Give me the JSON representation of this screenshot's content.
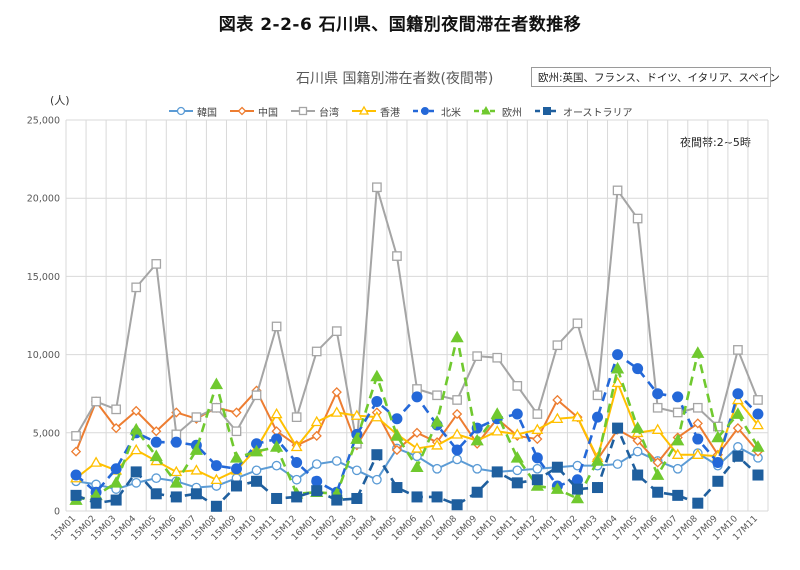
{
  "figure_title": "図表 2-2-6 石川県、国籍別夜間滞在者数推移",
  "chart_title": "石川県 国籍別滞在者数(夜間帯)",
  "note_box": "欧州:英国、フランス、ドイツ、イタリア、スペイン",
  "unit_label": "(人)",
  "time_note": "夜間帯:2~5時",
  "colors": {
    "韓国": "#5b9bd5",
    "中国": "#ed7d31",
    "台湾": "#a5a5a5",
    "香港": "#ffc000",
    "北米": "#2468d8",
    "欧州": "#70c92f",
    "オーストラリア": "#1f5f9e",
    "grid": "#d9d9d9",
    "axis_text": "#595959"
  },
  "chart_data": {
    "type": "line",
    "title": "石川県 国籍別滞在者数(夜間帯)",
    "ylabel": "(人)",
    "ylim": [
      0,
      25000
    ],
    "yticks": [
      "0",
      "5,000",
      "10,000",
      "15,000",
      "20,000",
      "25,000"
    ],
    "grid": true,
    "legend_placement": "top",
    "categories": [
      "15M01",
      "15M02",
      "15M03",
      "15M04",
      "15M05",
      "15M06",
      "15M07",
      "15M08",
      "15M09",
      "15M10",
      "15M11",
      "15M12",
      "16M01",
      "16M02",
      "16M03",
      "16M04",
      "16M05",
      "16M06",
      "16M07",
      "16M08",
      "16M09",
      "16M10",
      "16M11",
      "16M12",
      "17M01",
      "17M02",
      "17M03",
      "17M04",
      "17M05",
      "17M06",
      "17M07",
      "17M08",
      "17M09",
      "17M10",
      "17M11"
    ],
    "series": [
      {
        "name": "韓国",
        "marker": "circle-open",
        "dash": false,
        "values": [
          1900,
          1700,
          1400,
          1800,
          2100,
          1900,
          1500,
          1600,
          2100,
          2600,
          2900,
          2000,
          3000,
          3200,
          2600,
          2000,
          4000,
          3500,
          2700,
          3300,
          2700,
          2500,
          2600,
          2700,
          2800,
          2900,
          2900,
          3000,
          3800,
          3200,
          2700,
          3700,
          2900,
          4100,
          3400
        ]
      },
      {
        "name": "中国",
        "marker": "diamond-open",
        "dash": false,
        "values": [
          3800,
          7000,
          5300,
          6400,
          5100,
          6300,
          5900,
          6600,
          6300,
          7700,
          5100,
          4200,
          4800,
          7600,
          4200,
          6300,
          3900,
          5000,
          4400,
          6200,
          4300,
          5900,
          4800,
          4600,
          7100,
          6000,
          3300,
          5200,
          4500,
          3100,
          4700,
          5600,
          3600,
          5300,
          3800
        ]
      },
      {
        "name": "台湾",
        "marker": "square-open",
        "dash": false,
        "values": [
          4800,
          7000,
          6500,
          14300,
          15800,
          4900,
          6000,
          6600,
          5100,
          7400,
          11800,
          6000,
          10200,
          11500,
          4300,
          20700,
          16300,
          7800,
          7400,
          7100,
          9900,
          9800,
          8000,
          6200,
          10600,
          12000,
          7400,
          20500,
          18700,
          6600,
          6300,
          6600,
          5400,
          10300,
          7100
        ]
      },
      {
        "name": "香港",
        "marker": "triangle-open",
        "dash": false,
        "values": [
          2100,
          3100,
          2600,
          3900,
          3200,
          2500,
          2600,
          2000,
          2600,
          4000,
          6200,
          4100,
          5700,
          6300,
          6100,
          6000,
          4900,
          4000,
          4200,
          4900,
          4500,
          5100,
          4900,
          5200,
          5900,
          6000,
          3400,
          8200,
          5000,
          5200,
          3600,
          3600,
          3500,
          7100,
          5500
        ]
      },
      {
        "name": "北米",
        "marker": "circle",
        "dash": true,
        "values": [
          2300,
          1200,
          2700,
          5000,
          4400,
          4400,
          4200,
          2900,
          2700,
          4300,
          4600,
          3100,
          1900,
          1200,
          4900,
          7000,
          5900,
          7300,
          5500,
          3900,
          5300,
          5900,
          6200,
          3400,
          1600,
          2000,
          6000,
          10000,
          9100,
          7500,
          7300,
          4600,
          3100,
          7500,
          6200
        ]
      },
      {
        "name": "欧州",
        "marker": "triangle",
        "dash": true,
        "values": [
          700,
          1000,
          1800,
          5200,
          3500,
          1800,
          3900,
          8100,
          3400,
          3800,
          4100,
          1100,
          1200,
          1100,
          4600,
          8600,
          4800,
          2800,
          5700,
          11100,
          4500,
          6200,
          3400,
          1600,
          1400,
          800,
          3200,
          9100,
          5300,
          2300,
          4500,
          10100,
          4700,
          6200,
          4100
        ]
      },
      {
        "name": "オーストラリア",
        "marker": "square",
        "dash": true,
        "values": [
          1000,
          500,
          700,
          2500,
          1100,
          900,
          1100,
          300,
          1600,
          1900,
          800,
          900,
          1300,
          700,
          800,
          3600,
          1500,
          900,
          900,
          400,
          1200,
          2500,
          1800,
          2000,
          2800,
          1400,
          1500,
          5300,
          2300,
          1200,
          1000,
          500,
          1900,
          3500,
          2300
        ]
      }
    ]
  }
}
